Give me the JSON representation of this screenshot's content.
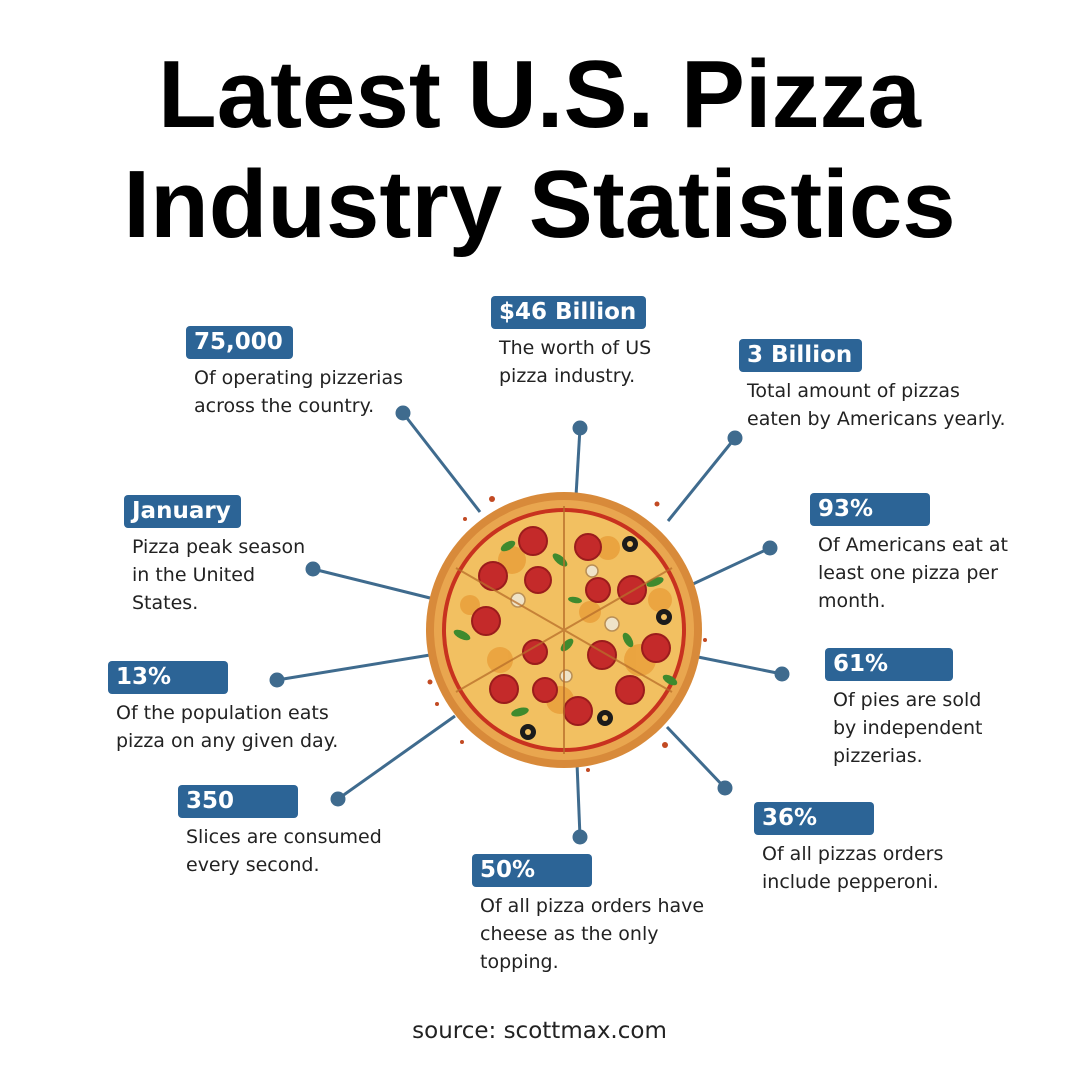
{
  "title": {
    "line1": "Latest U.S. Pizza",
    "line2": "Industry Statistics"
  },
  "stats": [
    {
      "value": "75,000",
      "line1": "Of operating pizzerias",
      "line2": "across the country.",
      "line3": ""
    },
    {
      "value": "$46 Billion",
      "line1": "The worth of US",
      "line2": "pizza industry.",
      "line3": ""
    },
    {
      "value": "3 Billion",
      "line1": "Total amount of pizzas",
      "line2": "eaten by Americans yearly.",
      "line3": ""
    },
    {
      "value": "January",
      "line1": "Pizza peak season",
      "line2": "in the United",
      "line3": "States."
    },
    {
      "value": "93%",
      "line1": "Of Americans eat at",
      "line2": "least one pizza per",
      "line3": "month."
    },
    {
      "value": "13%",
      "line1": "Of the population eats",
      "line2": "pizza on any given day.",
      "line3": ""
    },
    {
      "value": "61%",
      "line1": "Of pies are sold",
      "line2": "by independent",
      "line3": "pizzerias."
    },
    {
      "value": "350",
      "line1": "Slices are consumed",
      "line2": "every second.",
      "line3": ""
    },
    {
      "value": "36%",
      "line1": "Of all pizzas orders",
      "line2": "include pepperoni.",
      "line3": ""
    },
    {
      "value": "50%",
      "line1": "Of all pizza orders have",
      "line2": "cheese as the only",
      "line3": "topping."
    }
  ],
  "source": "source: scottmax.com",
  "colors": {
    "badge": "#2c6496",
    "connector": "#3f6b8e",
    "crust": "#d88a3a",
    "sauce": "#c8321f",
    "cheese": "#f2c061",
    "pepperoni": "#c42a2a",
    "olive": "#1b1b1b",
    "basil": "#3f8a2e"
  },
  "illustration": "pizza-illustration"
}
